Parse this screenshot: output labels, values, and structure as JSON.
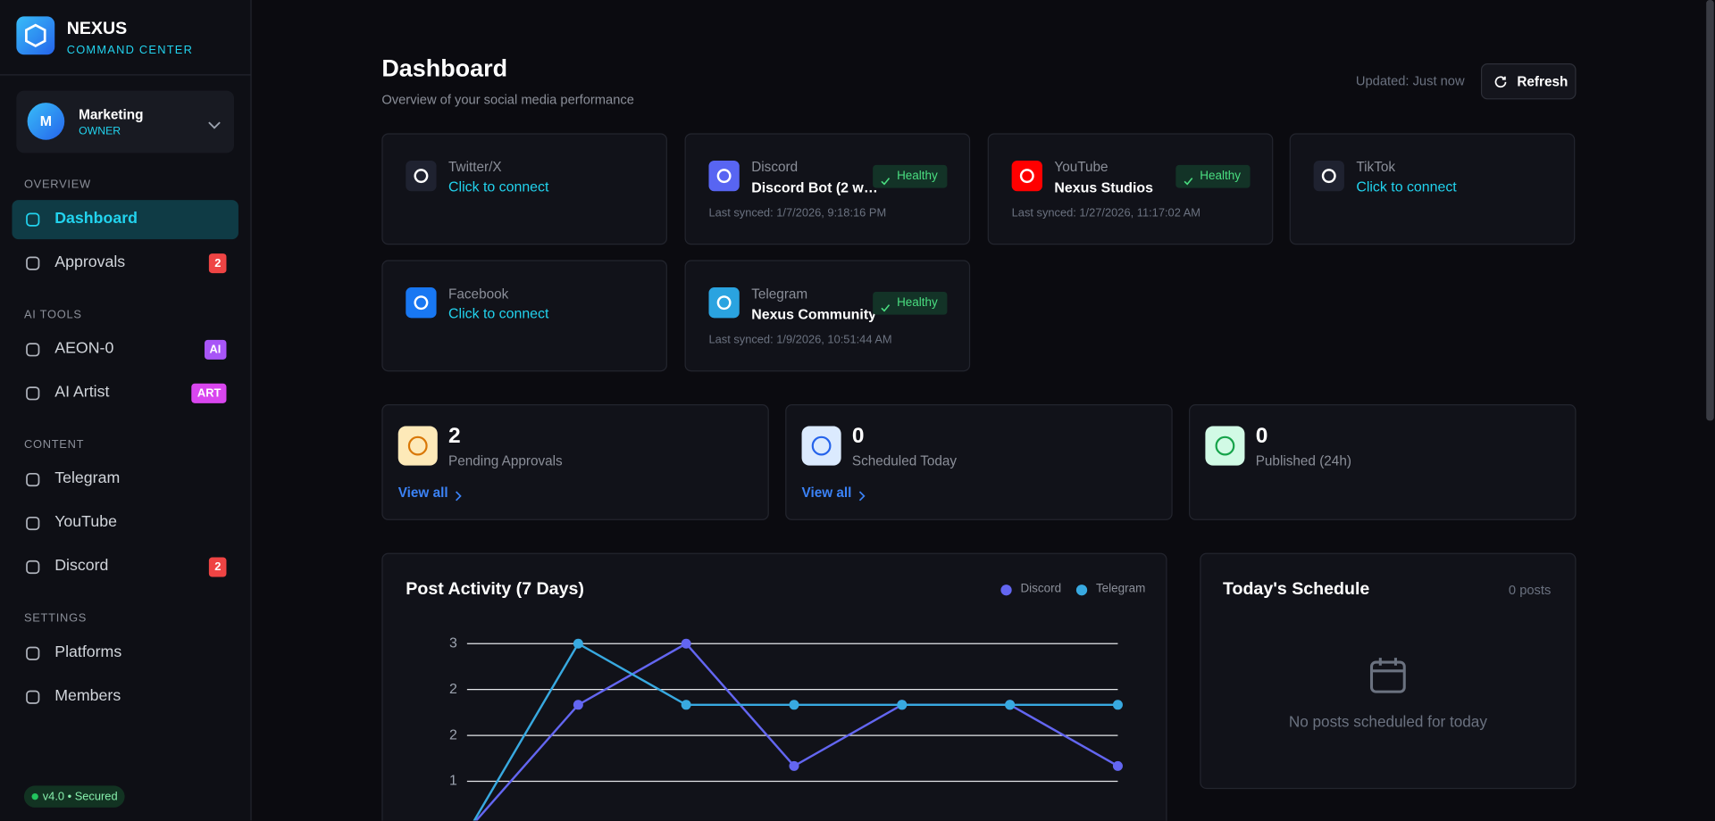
{
  "sidebar": {
    "brand": "NEXUS",
    "brand_sub": "COMMAND CENTER",
    "workspace": {
      "avatar": "M",
      "name": "Marketing",
      "role": "OWNER"
    },
    "sections": [
      {
        "title": "OVERVIEW",
        "items": [
          {
            "label": "Dashboard"
          },
          {
            "label": "Approvals",
            "badge": "2"
          }
        ]
      },
      {
        "title": "AI TOOLS",
        "items": [
          {
            "label": "AEON-0",
            "badge": "AI"
          },
          {
            "label": "AI Artist",
            "badge": "ART"
          }
        ]
      },
      {
        "title": "CONTENT",
        "items": [
          {
            "label": "Telegram"
          },
          {
            "label": "YouTube"
          },
          {
            "label": "Discord",
            "badge": "2"
          }
        ]
      },
      {
        "title": "SETTINGS",
        "items": [
          {
            "label": "Platforms"
          },
          {
            "label": "Members"
          }
        ]
      }
    ],
    "version": "v4.0 • Secured"
  },
  "header": {
    "title": "Dashboard",
    "subtitle": "Overview of your social media performance",
    "updated": "Updated: Just now",
    "refresh": "Refresh"
  },
  "platforms": [
    {
      "name": "Twitter/X",
      "status": "Click to connect"
    },
    {
      "name": "Discord",
      "account": "Discord Bot (2 w…",
      "health": "Healthy",
      "synced": "Last synced: 1/7/2026, 9:18:16 PM"
    },
    {
      "name": "YouTube",
      "account": "Nexus Studios",
      "health": "Healthy",
      "synced": "Last synced: 1/27/2026, 11:17:02 AM"
    },
    {
      "name": "TikTok",
      "status": "Click to connect"
    },
    {
      "name": "Facebook",
      "status": "Click to connect"
    },
    {
      "name": "Telegram",
      "account": "Nexus Community",
      "health": "Healthy",
      "synced": "Last synced: 1/9/2026, 10:51:44 AM"
    }
  ],
  "stats": [
    {
      "value": 2,
      "label": "Pending Approvals",
      "link": "View all"
    },
    {
      "value": 0,
      "label": "Scheduled Today",
      "link": "View all"
    },
    {
      "value": 0,
      "label": "Published (24h)"
    }
  ],
  "chart_data": {
    "type": "line",
    "title": "Post Activity (7 Days)",
    "categories": [
      null,
      null,
      null,
      null,
      null,
      null,
      null
    ],
    "series": [
      {
        "name": "Discord",
        "color": "#6366f1",
        "values": [
          0,
          2,
          3,
          1,
          2,
          2,
          1
        ]
      },
      {
        "name": "Telegram",
        "color": "#38a9e0",
        "values": [
          0,
          3,
          2,
          2,
          2,
          2,
          2
        ]
      }
    ],
    "ylim": [
      0,
      3
    ],
    "yticks": [
      3,
      {
        "value": 2.25,
        "label": "2"
      },
      {
        "value": 1.5,
        "label": "2"
      },
      {
        "value": 0.75,
        "label": "1"
      }
    ],
    "grid": true
  },
  "schedule": {
    "title": "Today's Schedule",
    "count": "0 posts",
    "empty": "No posts scheduled for today"
  }
}
